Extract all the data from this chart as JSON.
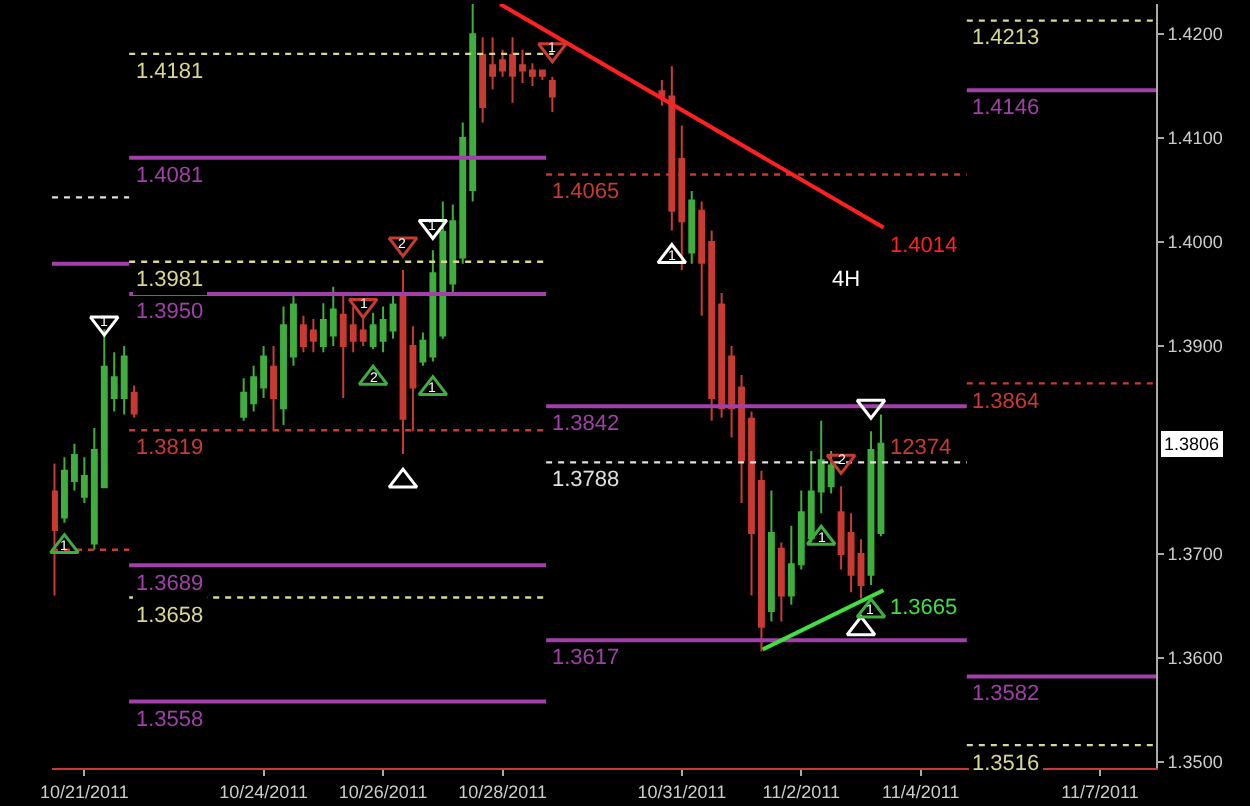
{
  "chart_data": {
    "type": "candlestick",
    "x": [
      "2011-10-20T12:00",
      "2011-10-20T16:00",
      "2011-10-20T20:00",
      "2011-10-21T00:00",
      "2011-10-21T04:00",
      "2011-10-21T08:00",
      "2011-10-21T12:00",
      "2011-10-21T16:00",
      "2011-10-21T20:00",
      "2011-10-23T16:00",
      "2011-10-23T20:00",
      "2011-10-24T00:00",
      "2011-10-24T04:00",
      "2011-10-24T08:00",
      "2011-10-24T12:00",
      "2011-10-24T16:00",
      "2011-10-24T20:00",
      "2011-10-25T00:00",
      "2011-10-25T04:00",
      "2011-10-25T08:00",
      "2011-10-25T12:00",
      "2011-10-25T16:00",
      "2011-10-25T20:00",
      "2011-10-26T00:00",
      "2011-10-26T04:00",
      "2011-10-26T08:00",
      "2011-10-26T12:00",
      "2011-10-26T16:00",
      "2011-10-26T20:00",
      "2011-10-27T00:00",
      "2011-10-27T04:00",
      "2011-10-27T08:00",
      "2011-10-27T12:00",
      "2011-10-27T16:00",
      "2011-10-27T20:00",
      "2011-10-28T00:00",
      "2011-10-28T04:00",
      "2011-10-28T08:00",
      "2011-10-28T12:00",
      "2011-10-28T16:00",
      "2011-10-28T20:00",
      "2011-10-30T16:00",
      "2011-10-30T20:00",
      "2011-10-31T00:00",
      "2011-10-31T04:00",
      "2011-10-31T08:00",
      "2011-10-31T12:00",
      "2011-10-31T16:00",
      "2011-10-31T20:00",
      "2011-11-01T00:00",
      "2011-11-01T04:00",
      "2011-11-01T08:00",
      "2011-11-01T12:00",
      "2011-11-01T16:00",
      "2011-11-01T20:00",
      "2011-11-02T00:00",
      "2011-11-02T04:00",
      "2011-11-02T08:00",
      "2011-11-02T12:00",
      "2011-11-02T16:00",
      "2011-11-02T20:00",
      "2011-11-03T00:00",
      "2011-11-03T04:00",
      "2011-11-03T08:00"
    ],
    "ohlc": [
      [
        1.376,
        1.3787,
        1.366,
        1.3723
      ],
      [
        1.3735,
        1.3793,
        1.373,
        1.378
      ],
      [
        1.377,
        1.3806,
        1.3761,
        1.3795
      ],
      [
        1.3755,
        1.3793,
        1.3749,
        1.3775
      ],
      [
        1.371,
        1.3821,
        1.3704,
        1.38
      ],
      [
        1.3764,
        1.3916,
        1.3764,
        1.388
      ],
      [
        1.385,
        1.3894,
        1.3837,
        1.387
      ],
      [
        1.385,
        1.39,
        1.3834,
        1.389
      ],
      [
        1.3855,
        1.3862,
        1.3831,
        1.3835
      ],
      [
        1.3832,
        1.3869,
        1.3828,
        1.3855
      ],
      [
        1.3845,
        1.3881,
        1.3837,
        1.387
      ],
      [
        1.386,
        1.39,
        1.385,
        1.389
      ],
      [
        1.388,
        1.39,
        1.3818,
        1.385
      ],
      [
        1.384,
        1.3938,
        1.3824,
        1.392
      ],
      [
        1.389,
        1.3951,
        1.3881,
        1.394
      ],
      [
        1.392,
        1.3929,
        1.3894,
        1.39
      ],
      [
        1.3915,
        1.3926,
        1.3894,
        1.3905
      ],
      [
        1.39,
        1.3941,
        1.3894,
        1.3925
      ],
      [
        1.391,
        1.3957,
        1.39,
        1.3935
      ],
      [
        1.393,
        1.3951,
        1.385,
        1.39
      ],
      [
        1.392,
        1.3938,
        1.3894,
        1.3905
      ],
      [
        1.3915,
        1.3926,
        1.39,
        1.3905
      ],
      [
        1.39,
        1.3932,
        1.3897,
        1.392
      ],
      [
        1.3905,
        1.3938,
        1.3894,
        1.3925
      ],
      [
        1.3915,
        1.3951,
        1.3907,
        1.394
      ],
      [
        1.395,
        1.3973,
        1.3796,
        1.383
      ],
      [
        1.39,
        1.3919,
        1.3818,
        1.386
      ],
      [
        1.3885,
        1.3913,
        1.3881,
        1.3905
      ],
      [
        1.389,
        1.3992,
        1.3885,
        1.397
      ],
      [
        1.391,
        1.4039,
        1.3907,
        1.401
      ],
      [
        1.396,
        1.4036,
        1.3951,
        1.402
      ],
      [
        1.3985,
        1.4115,
        1.3979,
        1.41
      ],
      [
        1.405,
        1.4229,
        1.4039,
        1.42
      ],
      [
        1.418,
        1.4197,
        1.4115,
        1.413
      ],
      [
        1.417,
        1.4197,
        1.4147,
        1.416
      ],
      [
        1.4175,
        1.4185,
        1.4159,
        1.4165
      ],
      [
        1.418,
        1.4197,
        1.4134,
        1.416
      ],
      [
        1.417,
        1.4185,
        1.4153,
        1.4165
      ],
      [
        1.4165,
        1.4172,
        1.415,
        1.416
      ],
      [
        1.4165,
        1.4166,
        1.4156,
        1.416
      ],
      [
        1.4155,
        1.4159,
        1.4125,
        1.414
      ],
      [
        1.4145,
        1.4156,
        1.4131,
        1.414
      ],
      [
        1.414,
        1.4169,
        1.4011,
        1.403
      ],
      [
        1.408,
        1.4112,
        1.3973,
        1.402
      ],
      [
        1.399,
        1.4049,
        1.3979,
        1.404
      ],
      [
        1.403,
        1.4039,
        1.3929,
        1.398
      ],
      [
        1.4,
        1.4011,
        1.3828,
        1.385
      ],
      [
        1.394,
        1.3951,
        1.3831,
        1.384
      ],
      [
        1.389,
        1.39,
        1.3812,
        1.384
      ],
      [
        1.386,
        1.3872,
        1.3749,
        1.379
      ],
      [
        1.383,
        1.3837,
        1.366,
        1.372
      ],
      [
        1.377,
        1.378,
        1.3606,
        1.363
      ],
      [
        1.3645,
        1.3761,
        1.3635,
        1.372
      ],
      [
        1.3705,
        1.3711,
        1.3635,
        1.366
      ],
      [
        1.366,
        1.3727,
        1.3651,
        1.369
      ],
      [
        1.369,
        1.3761,
        1.3685,
        1.374
      ],
      [
        1.3715,
        1.3799,
        1.3711,
        1.376
      ],
      [
        1.376,
        1.3828,
        1.3739,
        1.379
      ],
      [
        1.3765,
        1.3799,
        1.3758,
        1.3785
      ],
      [
        1.374,
        1.3765,
        1.3685,
        1.37
      ],
      [
        1.372,
        1.3739,
        1.3663,
        1.368
      ],
      [
        1.37,
        1.3714,
        1.3657,
        1.367
      ],
      [
        1.368,
        1.3818,
        1.367,
        1.38
      ],
      [
        1.372,
        1.3834,
        1.3717,
        1.3806
      ]
    ],
    "colors": [
      "#c83a32",
      "#3fae3f",
      "#3fae3f",
      "#3fae3f",
      "#3fae3f",
      "#3fae3f",
      "#3fae3f",
      "#3fae3f",
      "#c83a32",
      "#3fae3f",
      "#3fae3f",
      "#3fae3f",
      "#c83a32",
      "#3fae3f",
      "#3fae3f",
      "#c83a32",
      "#c83a32",
      "#3fae3f",
      "#3fae3f",
      "#c83a32",
      "#c83a32",
      "#c83a32",
      "#3fae3f",
      "#3fae3f",
      "#3fae3f",
      "#c83a32",
      "#c83a32",
      "#3fae3f",
      "#3fae3f",
      "#3fae3f",
      "#3fae3f",
      "#3fae3f",
      "#3fae3f",
      "#c83a32",
      "#c83a32",
      "#c83a32",
      "#c83a32",
      "#c83a32",
      "#c83a32",
      "#c83a32",
      "#c83a32",
      "#c83a32",
      "#c83a32",
      "#c83a32",
      "#3fae3f",
      "#c83a32",
      "#c83a32",
      "#c83a32",
      "#c83a32",
      "#c83a32",
      "#c83a32",
      "#c83a32",
      "#3fae3f",
      "#c83a32",
      "#3fae3f",
      "#3fae3f",
      "#3fae3f",
      "#3fae3f",
      "#3fae3f",
      "#c83a32",
      "#c83a32",
      "#c83a32",
      "#3fae3f",
      "#3fae3f"
    ],
    "series": [
      {
        "type": "line",
        "x": [
          "2011-10-21T18:00",
          "2011-10-28T20:30"
        ],
        "values": [
          1.4181,
          1.4181
        ],
        "color": "#d8d890",
        "line_style": "dotted"
      },
      {
        "type": "line",
        "x": [
          "2011-10-21T18:00",
          "2011-10-28T17:30"
        ],
        "values": [
          1.4081,
          1.4081
        ],
        "color": "#a040a8",
        "line_style": "solid"
      },
      {
        "type": "line",
        "x": [
          "2011-10-20T11:00",
          "2011-10-21T18:00"
        ],
        "values": [
          1.4043,
          1.4043
        ],
        "color": "#e0e0e0",
        "line_style": "dotted"
      },
      {
        "type": "line",
        "x": [
          "2011-10-20T11:00",
          "2011-10-21T18:00"
        ],
        "values": [
          1.3979,
          1.3979
        ],
        "color": "#a040a8",
        "line_style": "solid"
      },
      {
        "type": "line",
        "x": [
          "2011-10-21T18:00",
          "2011-10-28T17:30"
        ],
        "values": [
          1.3981,
          1.3981
        ],
        "color": "#d8d890",
        "line_style": "dotted"
      },
      {
        "type": "line",
        "x": [
          "2011-10-21T18:00",
          "2011-10-28T17:30"
        ],
        "values": [
          1.395,
          1.395
        ],
        "color": "#a040a8",
        "line_style": "solid"
      },
      {
        "type": "line",
        "x": [
          "2011-10-21T18:00",
          "2011-10-28T17:30"
        ],
        "values": [
          1.3819,
          1.3819
        ],
        "color": "#c83a32",
        "line_style": "dotted"
      },
      {
        "type": "line",
        "x": [
          "2011-10-20T11:00",
          "2011-10-21T18:00"
        ],
        "values": [
          1.3704,
          1.3704
        ],
        "color": "#c83a32",
        "line_style": "dotted"
      },
      {
        "type": "line",
        "x": [
          "2011-10-21T18:00",
          "2011-10-28T17:30"
        ],
        "values": [
          1.3689,
          1.3689
        ],
        "color": "#a040a8",
        "line_style": "solid"
      },
      {
        "type": "line",
        "x": [
          "2011-10-21T18:00",
          "2011-10-28T17:30"
        ],
        "values": [
          1.3658,
          1.3658
        ],
        "color": "#d8d890",
        "line_style": "dotted"
      },
      {
        "type": "line",
        "x": [
          "2011-10-21T18:00",
          "2011-10-28T17:30"
        ],
        "values": [
          1.3558,
          1.3558
        ],
        "color": "#a040a8",
        "line_style": "solid"
      },
      {
        "type": "line",
        "x": [
          "2011-10-28T17:30",
          "2011-11-04T18:30"
        ],
        "values": [
          1.4065,
          1.4065
        ],
        "color": "#c83a32",
        "line_style": "dotted"
      },
      {
        "type": "line",
        "x": [
          "2011-10-28T17:30",
          "2011-11-04T18:30"
        ],
        "values": [
          1.3842,
          1.3842
        ],
        "color": "#a040a8",
        "line_style": "solid"
      },
      {
        "type": "line",
        "x": [
          "2011-10-28T17:30",
          "2011-11-04T18:30"
        ],
        "values": [
          1.3788,
          1.3788
        ],
        "color": "#e0e0e0",
        "line_style": "dotted"
      },
      {
        "type": "line",
        "x": [
          "2011-10-28T17:30",
          "2011-11-04T18:30"
        ],
        "values": [
          1.3617,
          1.3617
        ],
        "color": "#a040a8",
        "line_style": "solid"
      },
      {
        "type": "line",
        "x": [
          "2011-11-04T18:30",
          "2011-11-07T22:30"
        ],
        "values": [
          1.4213,
          1.4213
        ],
        "color": "#d8d890",
        "line_style": "dotted"
      },
      {
        "type": "line",
        "x": [
          "2011-11-04T18:30",
          "2011-11-07T22:30"
        ],
        "values": [
          1.4146,
          1.4146
        ],
        "color": "#a040a8",
        "line_style": "solid"
      },
      {
        "type": "line",
        "x": [
          "2011-11-04T18:30",
          "2011-11-07T22:30"
        ],
        "values": [
          1.3864,
          1.3864
        ],
        "color": "#c83a32",
        "line_style": "dotted"
      },
      {
        "type": "line",
        "x": [
          "2011-11-04T18:30",
          "2011-11-07T22:30"
        ],
        "values": [
          1.3582,
          1.3582
        ],
        "color": "#a040a8",
        "line_style": "solid"
      },
      {
        "type": "line",
        "x": [
          "2011-11-04T18:30",
          "2011-11-07T22:30"
        ],
        "values": [
          1.3516,
          1.3516
        ],
        "color": "#d8d890",
        "line_style": "dotted"
      },
      {
        "type": "line",
        "x": [
          "2011-10-27T23:00",
          "2011-11-03T09:00"
        ],
        "values": [
          1.4229,
          1.4014
        ],
        "color": "#ff2020",
        "line_style": "solid"
      },
      {
        "type": "line",
        "x": [
          "2011-11-01T08:30",
          "2011-11-03T09:00"
        ],
        "values": [
          1.3608,
          1.3665
        ],
        "color": "#40e040",
        "line_style": "solid"
      },
      {
        "type": "scatter",
        "marker": "triangle",
        "x": [
          "2011-10-20T16:00",
          "2011-10-25T20:00",
          "2011-10-26T08:00",
          "2011-10-26T20:00",
          "2011-10-30T20:00",
          "2011-11-02T08:00",
          "2011-11-03T00:00",
          "2011-11-03T04:00"
        ],
        "values": [
          1.3707,
          1.3869,
          1.377,
          1.3859,
          1.3986,
          1.3715,
          1.3628,
          1.3645
        ],
        "colors": [
          "#3fae3f",
          "#3fae3f",
          "#ffffff",
          "#3fae3f",
          "#ffffff",
          "#3fae3f",
          "#ffffff",
          "#3fae3f"
        ]
      },
      {
        "type": "scatter",
        "marker": "triangle",
        "x": [
          "2011-10-21T08:00",
          "2011-10-25T16:00",
          "2011-10-26T08:00",
          "2011-10-26T20:00",
          "2011-10-28T20:00",
          "2011-11-02T16:00",
          "2011-11-03T04:00"
        ],
        "values": [
          1.3922,
          1.3939,
          1.3998,
          1.4015,
          1.4185,
          1.3789,
          1.3842
        ],
        "colors": [
          "#ffffff",
          "#c83a32",
          "#c83a32",
          "#ffffff",
          "#c83a32",
          "#c83a32",
          "#ffffff"
        ]
      }
    ],
    "annotations": [
      {
        "text": "1.4181",
        "x": "2011-10-21T18:00",
        "y": 1.4181
      },
      {
        "text": "1.4081",
        "x": "2011-10-21T18:00",
        "y": 1.4081
      },
      {
        "text": "1.3981",
        "x": "2011-10-21T18:00",
        "y": 1.3981
      },
      {
        "text": "1.3950",
        "x": "2011-10-21T18:00",
        "y": 1.395
      },
      {
        "text": "1.3819",
        "x": "2011-10-21T18:00",
        "y": 1.3819
      },
      {
        "text": "1.3689",
        "x": "2011-10-21T18:00",
        "y": 1.3689
      },
      {
        "text": "1.3658",
        "x": "2011-10-21T18:00",
        "y": 1.3658
      },
      {
        "text": "1.3558",
        "x": "2011-10-21T18:00",
        "y": 1.3558
      },
      {
        "text": "1.4065",
        "x": "2011-10-28T17:30",
        "y": 1.4065
      },
      {
        "text": "1.3842",
        "x": "2011-10-28T17:30",
        "y": 1.3842
      },
      {
        "text": "1.3788",
        "x": "2011-10-28T17:30",
        "y": 1.3788
      },
      {
        "text": "1.3617",
        "x": "2011-10-28T17:30",
        "y": 1.3617
      },
      {
        "text": "1.4213",
        "x": "2011-11-04T18:30",
        "y": 1.4213
      },
      {
        "text": "1.4146",
        "x": "2011-11-04T18:30",
        "y": 1.4146
      },
      {
        "text": "1.3864",
        "x": "2011-11-04T18:30",
        "y": 1.3864
      },
      {
        "text": "1.3582",
        "x": "2011-11-04T18:30",
        "y": 1.3582
      },
      {
        "text": "1.3516",
        "x": "2011-11-04T18:30",
        "y": 1.3516
      },
      {
        "text": "1.4014",
        "x": "2011-11-03T09:00",
        "y": 1.4014
      },
      {
        "text": "1.3665",
        "x": "2011-11-03T09:00",
        "y": 1.3665
      },
      {
        "text": "1",
        "x": "2011-10-20T16:00",
        "y": 1.3707
      },
      {
        "text": "2",
        "x": "2011-10-25T20:00",
        "y": 1.3869
      },
      {
        "text": "1",
        "x": "2011-10-26T20:00",
        "y": 1.3859
      },
      {
        "text": "1",
        "x": "2011-10-30T20:00",
        "y": 1.3986
      },
      {
        "text": "1",
        "x": "2011-11-02T08:00",
        "y": 1.3715
      },
      {
        "text": "1",
        "x": "2011-11-03T04:00",
        "y": 1.3645
      },
      {
        "text": "1",
        "x": "2011-10-21T08:00",
        "y": 1.3922
      },
      {
        "text": "1",
        "x": "2011-10-25T16:00",
        "y": 1.3939
      },
      {
        "text": "2",
        "x": "2011-10-26T08:00",
        "y": 1.3998
      },
      {
        "text": "1",
        "x": "2011-10-26T20:00",
        "y": 1.4015
      },
      {
        "text": "1",
        "x": "2011-10-28T20:00",
        "y": 1.4185
      },
      {
        "text": "2",
        "x": "2011-11-02T16:00",
        "y": 1.3789
      },
      "12374",
      "4H",
      "1.3806"
    ],
    "xlim": [
      "2011-10-20T11:00",
      "2011-11-07T22:30"
    ],
    "ylim": [
      1.3494,
      1.4229
    ],
    "xticks": [
      {
        "value": "2011-10-21",
        "label": "10/21/2011"
      },
      {
        "value": "2011-10-24",
        "label": "10/24/2011"
      },
      {
        "value": "2011-10-26",
        "label": "10/26/2011"
      },
      {
        "value": "2011-10-28",
        "label": "10/28/2011"
      },
      {
        "value": "2011-10-31",
        "label": "10/31/2011"
      },
      {
        "value": "2011-11-02",
        "label": "11/2/2011"
      },
      {
        "value": "2011-11-04",
        "label": "11/4/2011"
      },
      {
        "value": "2011-11-07",
        "label": "11/7/2011"
      }
    ],
    "yticks": [
      {
        "value": 1.35,
        "label": "1.3500"
      },
      {
        "value": 1.36,
        "label": "1.3600"
      },
      {
        "value": 1.37,
        "label": "1.3700"
      },
      {
        "value": 1.39,
        "label": "1.3900"
      },
      {
        "value": 1.4,
        "label": "1.4000"
      },
      {
        "value": 1.41,
        "label": "1.4100"
      },
      {
        "value": 1.42,
        "label": "1.4200"
      }
    ],
    "grid": false
  }
}
